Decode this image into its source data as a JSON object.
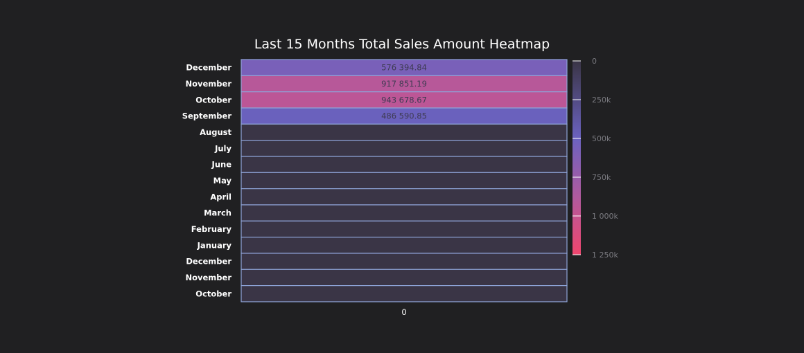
{
  "chart_data": {
    "type": "heatmap",
    "title": "Last 15 Months Total Sales Amount Heatmap",
    "x_categories": [
      "0"
    ],
    "y_categories": [
      "December",
      "November",
      "October",
      "September",
      "August",
      "July",
      "June",
      "May",
      "April",
      "March",
      "February",
      "January",
      "December",
      "November",
      "October"
    ],
    "values": [
      576394.84,
      917851.19,
      943678.67,
      486590.85,
      0,
      0,
      0,
      0,
      0,
      0,
      0,
      0,
      0,
      0,
      0
    ],
    "cell_labels": [
      "576 394.84",
      "917 851.19",
      "943 678.67",
      "486 590.85",
      "",
      "",
      "",
      "",
      "",
      "",
      "",
      "",
      "",
      "",
      ""
    ],
    "colorscale": {
      "range": [
        0,
        1250000
      ],
      "stops": [
        [
          0,
          "#3a3546"
        ],
        [
          0.4,
          "#6b62c0"
        ],
        [
          0.7,
          "#b05a9f"
        ],
        [
          1,
          "#f0466e"
        ]
      ],
      "ticks": [
        0,
        250000,
        500000,
        750000,
        1000000,
        1250000
      ],
      "tick_labels": [
        "0",
        "250k",
        "500k",
        "750k",
        "1 000k",
        "1 250k"
      ]
    },
    "cell_border_color": "#8fa4d8",
    "background": "#202022"
  }
}
